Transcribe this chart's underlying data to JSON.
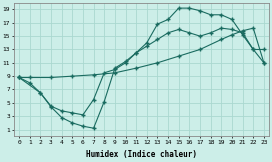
{
  "xlabel": "Humidex (Indice chaleur)",
  "bg_color": "#cceee8",
  "line_color": "#1a6b60",
  "grid_color": "#aad8d0",
  "xlim": [
    -0.5,
    23.5
  ],
  "ylim": [
    0,
    20
  ],
  "xticks": [
    0,
    1,
    2,
    3,
    4,
    5,
    6,
    7,
    8,
    9,
    10,
    11,
    12,
    13,
    14,
    15,
    16,
    17,
    18,
    19,
    20,
    21,
    22,
    23
  ],
  "yticks": [
    1,
    3,
    5,
    7,
    9,
    11,
    13,
    15,
    17,
    19
  ],
  "line1_x": [
    0,
    1,
    2,
    3,
    4,
    5,
    6,
    7,
    8,
    9,
    10,
    11,
    12,
    13,
    14,
    15,
    16,
    17,
    18,
    19,
    20,
    21,
    22,
    23
  ],
  "line1_y": [
    8.8,
    8.0,
    6.5,
    4.4,
    2.8,
    2.0,
    1.5,
    1.2,
    5.2,
    10.2,
    11.2,
    12.5,
    14.0,
    16.8,
    17.5,
    19.2,
    19.2,
    18.8,
    18.2,
    18.2,
    17.5,
    15.2,
    13.0,
    11.0
  ],
  "line2_x": [
    0,
    1,
    3,
    5,
    7,
    9,
    11,
    13,
    15,
    17,
    19,
    20,
    21,
    22,
    23
  ],
  "line2_y": [
    8.8,
    8.8,
    8.8,
    9.0,
    9.2,
    9.5,
    10.2,
    11.0,
    12.0,
    13.0,
    14.5,
    15.2,
    15.8,
    16.2,
    11.0
  ],
  "line3_x": [
    0,
    2,
    3,
    4,
    5,
    6,
    7,
    8,
    9,
    10,
    11,
    12,
    13,
    14,
    15,
    16,
    17,
    18,
    19,
    20,
    21,
    22,
    23
  ],
  "line3_y": [
    8.8,
    6.5,
    4.5,
    3.8,
    3.5,
    3.2,
    5.5,
    9.5,
    10.0,
    11.0,
    12.5,
    13.5,
    14.5,
    15.5,
    16.0,
    15.5,
    15.0,
    15.5,
    16.2,
    16.0,
    15.5,
    13.0,
    13.0
  ]
}
